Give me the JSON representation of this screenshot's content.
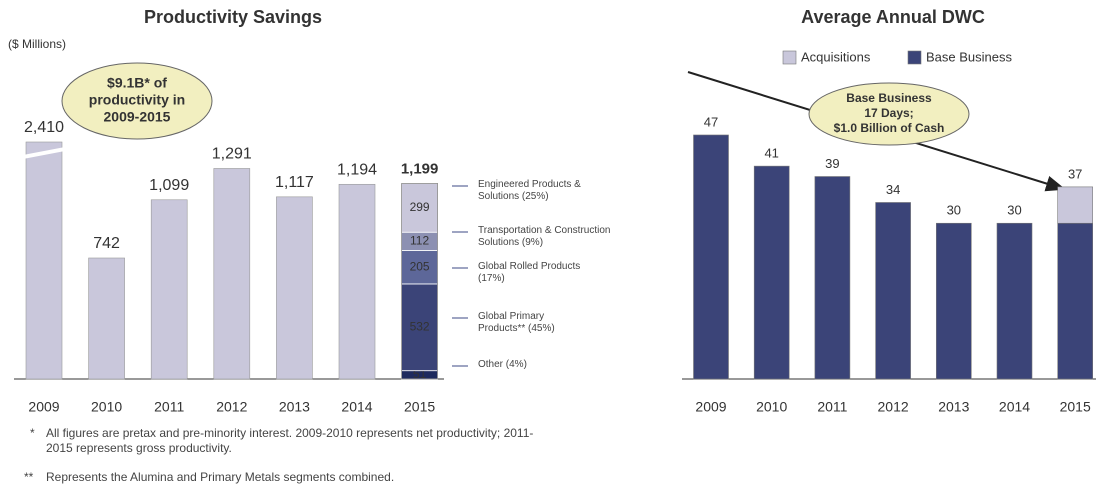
{
  "chart_data": [
    {
      "type": "bar",
      "title": "Productivity Savings",
      "subtitle": "($ Millions)",
      "categories": [
        "2009",
        "2010",
        "2011",
        "2012",
        "2013",
        "2014",
        "2015"
      ],
      "values": [
        2410,
        742,
        1099,
        1291,
        1117,
        1194,
        1199
      ],
      "value_labels": [
        "2,410",
        "742",
        "1,099",
        "1,291",
        "1,117",
        "1,194",
        "1,199"
      ],
      "color": "#c9c7db",
      "ylim": [
        0,
        1300
      ],
      "axis_break": true,
      "annotation": [
        "$9.1B* of",
        "productivity in",
        "2009-2015"
      ],
      "breakdown": [
        {
          "name": "Other (4%)",
          "value": 51,
          "color": "#1e2a5e"
        },
        {
          "name": "Global Primary Products** (45%)",
          "value": 532,
          "color": "#3b4478"
        },
        {
          "name": "Global Rolled Products (17%)",
          "value": 205,
          "color": "#5d6799"
        },
        {
          "name": "Transportation & Construction Solutions (9%)",
          "value": 112,
          "color": "#8c90b2"
        },
        {
          "name": "Engineered Products & Solutions (25%)",
          "value": 299,
          "color": "#c9c7db"
        }
      ],
      "footnotes": [
        {
          "marker": "*",
          "text": "All figures are pretax and pre-minority interest. 2009-2010 represents net productivity; 2011-2015 represents gross productivity."
        },
        {
          "marker": "**",
          "text": "Represents the Alumina and Primary Metals segments combined."
        }
      ]
    },
    {
      "type": "stacked_bar",
      "title": "Average Annual DWC",
      "categories": [
        "2009",
        "2010",
        "2011",
        "2012",
        "2013",
        "2014",
        "2015"
      ],
      "series": [
        {
          "name": "Acquisitions",
          "color": "#c9c7db",
          "values": [
            null,
            null,
            null,
            null,
            null,
            null,
            7
          ]
        },
        {
          "name": "Base Business",
          "color": "#3b4478",
          "values": [
            47,
            41,
            39,
            34,
            30,
            30,
            30
          ]
        }
      ],
      "totals": [
        47,
        41,
        39,
        34,
        30,
        30,
        37
      ],
      "ylim": [
        0,
        50
      ],
      "annotation": [
        "Base Business",
        "17 Days;",
        "$1.0 Billion of Cash"
      ]
    }
  ]
}
